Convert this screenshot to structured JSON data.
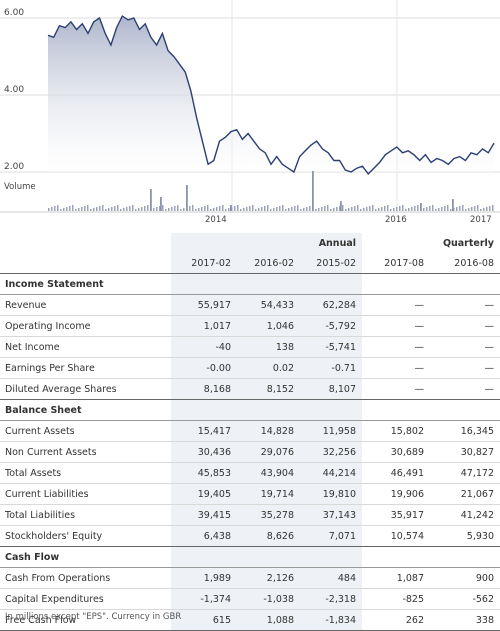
{
  "chart": {
    "y_ticks": [
      "6.00",
      "4.00",
      "2.00"
    ],
    "volume_label": "Volume",
    "x_ticks": [
      "2014",
      "2016",
      "2017"
    ],
    "line_color": "#2b3f73",
    "area_top_color": "#aeb6cc"
  },
  "chart_data": {
    "type": "area",
    "y_range": [
      1.8,
      6.3
    ],
    "grid": true,
    "x_ticks": [
      "2014",
      "2016",
      "2017"
    ],
    "price": [
      5.55,
      5.5,
      5.8,
      5.75,
      5.9,
      5.7,
      5.85,
      5.6,
      5.9,
      6.0,
      5.6,
      5.3,
      5.75,
      6.05,
      5.95,
      6.0,
      5.7,
      5.85,
      5.5,
      5.3,
      5.6,
      5.15,
      5.0,
      4.8,
      4.6,
      4.1,
      3.4,
      2.8,
      2.2,
      2.3,
      2.8,
      2.9,
      3.05,
      3.1,
      2.85,
      3.0,
      2.8,
      2.6,
      2.5,
      2.2,
      2.4,
      2.2,
      2.1,
      2.0,
      2.4,
      2.55,
      2.7,
      2.8,
      2.6,
      2.5,
      2.3,
      2.3,
      2.05,
      2.0,
      2.1,
      2.15,
      1.95,
      2.1,
      2.25,
      2.45,
      2.55,
      2.65,
      2.5,
      2.55,
      2.45,
      2.3,
      2.45,
      2.25,
      2.35,
      2.3,
      2.2,
      2.35,
      2.4,
      2.3,
      2.5,
      2.45,
      2.6,
      2.5,
      2.75
    ]
  },
  "table": {
    "group_headers": {
      "annual": "Annual",
      "quarterly": "Quarterly"
    },
    "columns": [
      "2017-02",
      "2016-02",
      "2015-02",
      "2017-08",
      "2016-08"
    ],
    "income_title": "Income Statement",
    "income": [
      {
        "label": "Revenue",
        "v": [
          "55,917",
          "54,433",
          "62,284",
          "—",
          "—"
        ]
      },
      {
        "label": "Operating Income",
        "v": [
          "1,017",
          "1,046",
          "-5,792",
          "—",
          "—"
        ]
      },
      {
        "label": "Net Income",
        "v": [
          "-40",
          "138",
          "-5,741",
          "—",
          "—"
        ]
      },
      {
        "label": "Earnings Per Share",
        "v": [
          "-0.00",
          "0.02",
          "-0.71",
          "—",
          "—"
        ]
      },
      {
        "label": "Diluted Average Shares",
        "v": [
          "8,168",
          "8,152",
          "8,107",
          "—",
          "—"
        ]
      }
    ],
    "balance_title": "Balance Sheet",
    "balance": [
      {
        "label": "Current Assets",
        "v": [
          "15,417",
          "14,828",
          "11,958",
          "15,802",
          "16,345"
        ]
      },
      {
        "label": "Non Current Assets",
        "v": [
          "30,436",
          "29,076",
          "32,256",
          "30,689",
          "30,827"
        ]
      },
      {
        "label": "Total Assets",
        "v": [
          "45,853",
          "43,904",
          "44,214",
          "46,491",
          "47,172"
        ]
      },
      {
        "label": "Current Liabilities",
        "v": [
          "19,405",
          "19,714",
          "19,810",
          "19,906",
          "21,067"
        ]
      },
      {
        "label": "Total Liabilities",
        "v": [
          "39,415",
          "35,278",
          "37,143",
          "35,917",
          "41,242"
        ]
      },
      {
        "label": "Stockholders' Equity",
        "v": [
          "6,438",
          "8,626",
          "7,071",
          "10,574",
          "5,930"
        ]
      }
    ],
    "cash_title": "Cash Flow",
    "cash": [
      {
        "label": "Cash From Operations",
        "v": [
          "1,989",
          "2,126",
          "484",
          "1,087",
          "900"
        ]
      },
      {
        "label": "Capital Expenditures",
        "v": [
          "-1,374",
          "-1,038",
          "-2,318",
          "-825",
          "-562"
        ]
      },
      {
        "label": "Free Cash Flow",
        "v": [
          "615",
          "1,088",
          "-1,834",
          "262",
          "338"
        ]
      }
    ]
  },
  "footnote": "In millions except \"EPS\". Currency in GBR"
}
